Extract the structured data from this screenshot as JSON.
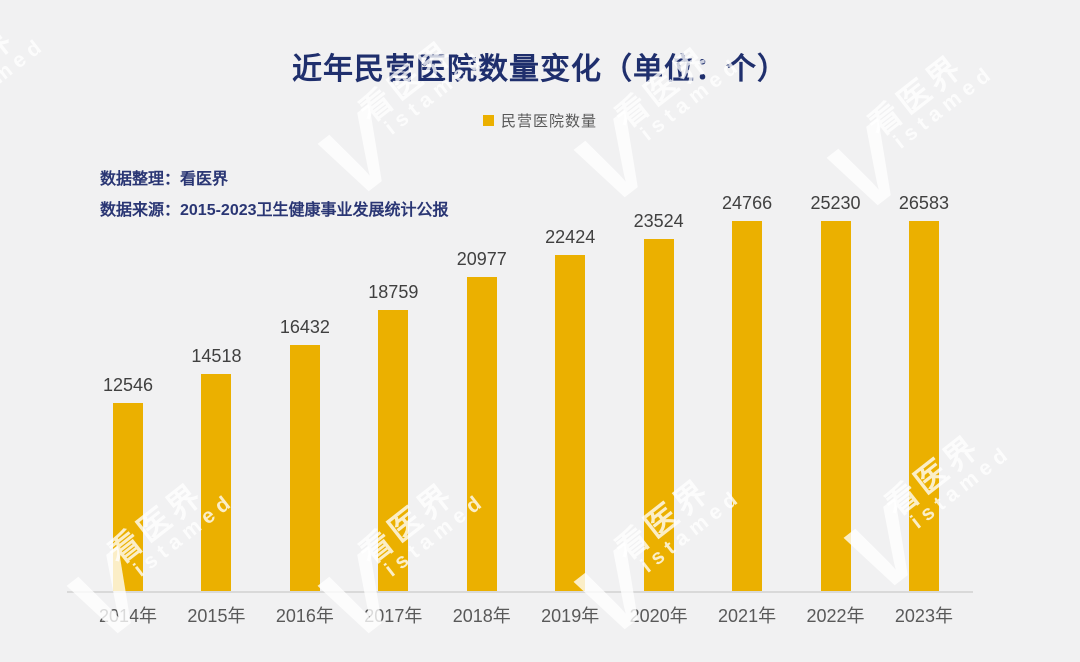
{
  "title": "近年民营医院数量变化（单位：个）",
  "legend": {
    "label": "民营医院数量"
  },
  "notes": {
    "compiled": "数据整理：看医界",
    "source": "数据来源：2015-2023卫生健康事业发展统计公报"
  },
  "watermark": {
    "initial": "V",
    "cn": "看医界",
    "en": "istamed"
  },
  "colors": {
    "background": "#F1F1F2",
    "title_text": "#1F2F6D",
    "notes_text": "#2A3674",
    "bar": "#EBB000",
    "value_label": "#404040",
    "axis_label": "#595959",
    "axis_line": "#D9D9D9",
    "legend_text": "#595959",
    "watermark": "rgba(255,255,255,0.78)"
  },
  "chart_data": {
    "type": "bar",
    "title": "近年民营医院数量变化（单位：个）",
    "series_name": "民营医院数量",
    "categories": [
      "2014年",
      "2015年",
      "2016年",
      "2017年",
      "2018年",
      "2019年",
      "2020年",
      "2021年",
      "2022年",
      "2023年"
    ],
    "values": [
      12546,
      14518,
      16432,
      18759,
      20977,
      22424,
      23524,
      24766,
      25230,
      26583
    ],
    "xlabel": "",
    "ylabel": "",
    "ylim": [
      0,
      26583
    ],
    "grid": false,
    "legend_position": "top-center",
    "value_labels": true
  }
}
